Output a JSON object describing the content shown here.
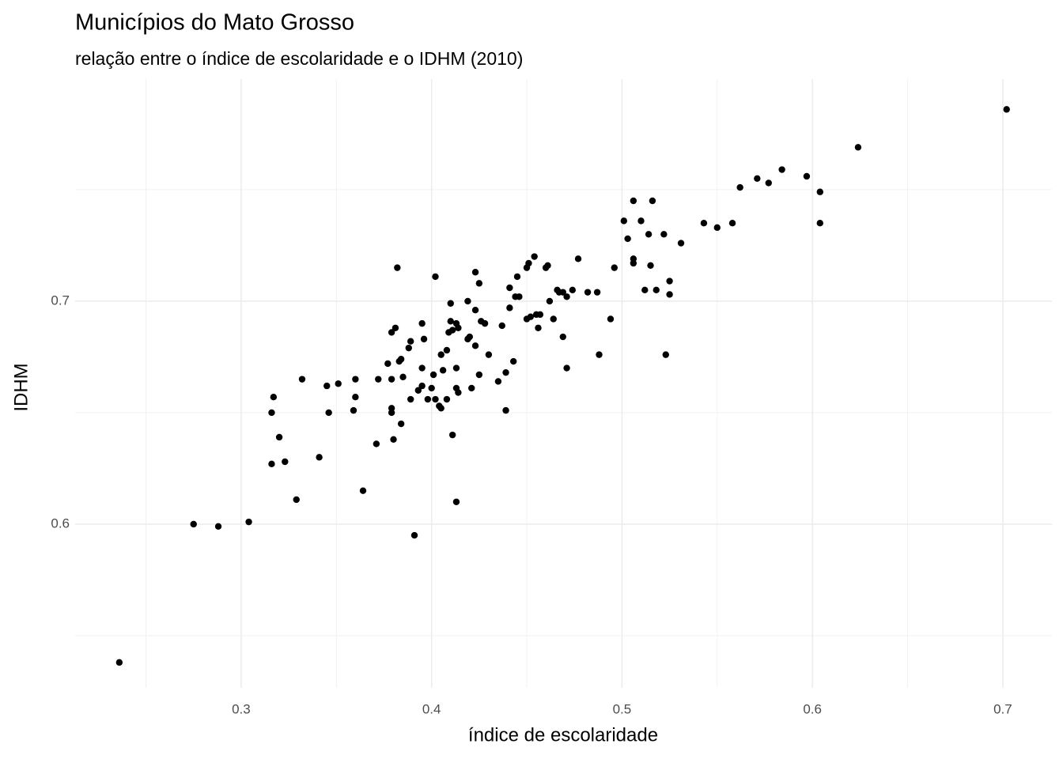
{
  "chart_data": {
    "type": "scatter",
    "title": "Municípios do Mato Grosso",
    "subtitle": "relação entre o índice de escolaridade e o IDHM (2010)",
    "x_label": "índice de escolaridade",
    "y_label": "IDHM",
    "color": "#000000",
    "grid": true,
    "xlim": [
      0.2128,
      0.7258
    ],
    "ylim": [
      0.5266,
      0.7996
    ],
    "xticks": [
      0.3,
      0.4,
      0.5,
      0.6,
      0.7
    ],
    "yticks": [
      0.6,
      0.7
    ],
    "minor_xticks": [
      0.25,
      0.35,
      0.45,
      0.55,
      0.65
    ],
    "minor_yticks": [
      0.55,
      0.65,
      0.75
    ],
    "x": [
      0.236,
      0.275,
      0.288,
      0.304,
      0.317,
      0.316,
      0.316,
      0.32,
      0.323,
      0.329,
      0.332,
      0.341,
      0.345,
      0.346,
      0.351,
      0.359,
      0.36,
      0.36,
      0.364,
      0.371,
      0.372,
      0.377,
      0.379,
      0.379,
      0.379,
      0.38,
      0.379,
      0.381,
      0.382,
      0.383,
      0.384,
      0.384,
      0.385,
      0.388,
      0.389,
      0.389,
      0.391,
      0.393,
      0.395,
      0.395,
      0.395,
      0.396,
      0.398,
      0.4,
      0.401,
      0.402,
      0.402,
      0.404,
      0.405,
      0.405,
      0.406,
      0.408,
      0.408,
      0.409,
      0.41,
      0.41,
      0.411,
      0.411,
      0.413,
      0.413,
      0.413,
      0.413,
      0.414,
      0.414,
      0.419,
      0.419,
      0.42,
      0.421,
      0.423,
      0.423,
      0.423,
      0.425,
      0.425,
      0.426,
      0.428,
      0.43,
      0.435,
      0.437,
      0.439,
      0.439,
      0.441,
      0.441,
      0.443,
      0.444,
      0.445,
      0.446,
      0.45,
      0.45,
      0.451,
      0.452,
      0.454,
      0.455,
      0.456,
      0.457,
      0.46,
      0.461,
      0.462,
      0.464,
      0.466,
      0.467,
      0.469,
      0.469,
      0.471,
      0.471,
      0.474,
      0.477,
      0.482,
      0.487,
      0.488,
      0.494,
      0.496,
      0.501,
      0.503,
      0.506,
      0.506,
      0.506,
      0.51,
      0.512,
      0.514,
      0.515,
      0.516,
      0.518,
      0.522,
      0.523,
      0.525,
      0.525,
      0.531,
      0.543,
      0.55,
      0.558,
      0.562,
      0.571,
      0.577,
      0.584,
      0.597,
      0.604,
      0.604,
      0.624,
      0.702
    ],
    "values": [
      0.538,
      0.6,
      0.599,
      0.601,
      0.657,
      0.65,
      0.627,
      0.639,
      0.628,
      0.611,
      0.665,
      0.63,
      0.662,
      0.65,
      0.663,
      0.651,
      0.657,
      0.665,
      0.615,
      0.636,
      0.665,
      0.672,
      0.665,
      0.652,
      0.65,
      0.638,
      0.686,
      0.688,
      0.715,
      0.673,
      0.674,
      0.645,
      0.666,
      0.679,
      0.656,
      0.682,
      0.595,
      0.66,
      0.662,
      0.69,
      0.67,
      0.683,
      0.656,
      0.661,
      0.667,
      0.656,
      0.711,
      0.653,
      0.676,
      0.652,
      0.669,
      0.656,
      0.678,
      0.686,
      0.699,
      0.691,
      0.64,
      0.687,
      0.661,
      0.67,
      0.69,
      0.61,
      0.688,
      0.659,
      0.7,
      0.683,
      0.684,
      0.661,
      0.713,
      0.68,
      0.696,
      0.667,
      0.708,
      0.691,
      0.69,
      0.676,
      0.664,
      0.689,
      0.668,
      0.651,
      0.697,
      0.706,
      0.673,
      0.702,
      0.711,
      0.702,
      0.692,
      0.715,
      0.717,
      0.693,
      0.72,
      0.694,
      0.688,
      0.694,
      0.715,
      0.716,
      0.7,
      0.692,
      0.705,
      0.704,
      0.684,
      0.704,
      0.702,
      0.67,
      0.705,
      0.719,
      0.704,
      0.704,
      0.676,
      0.692,
      0.715,
      0.736,
      0.728,
      0.745,
      0.719,
      0.717,
      0.736,
      0.705,
      0.73,
      0.716,
      0.745,
      0.705,
      0.73,
      0.676,
      0.709,
      0.703,
      0.726,
      0.735,
      0.733,
      0.735,
      0.751,
      0.755,
      0.753,
      0.759,
      0.756,
      0.749,
      0.735,
      0.769,
      0.786
    ]
  }
}
